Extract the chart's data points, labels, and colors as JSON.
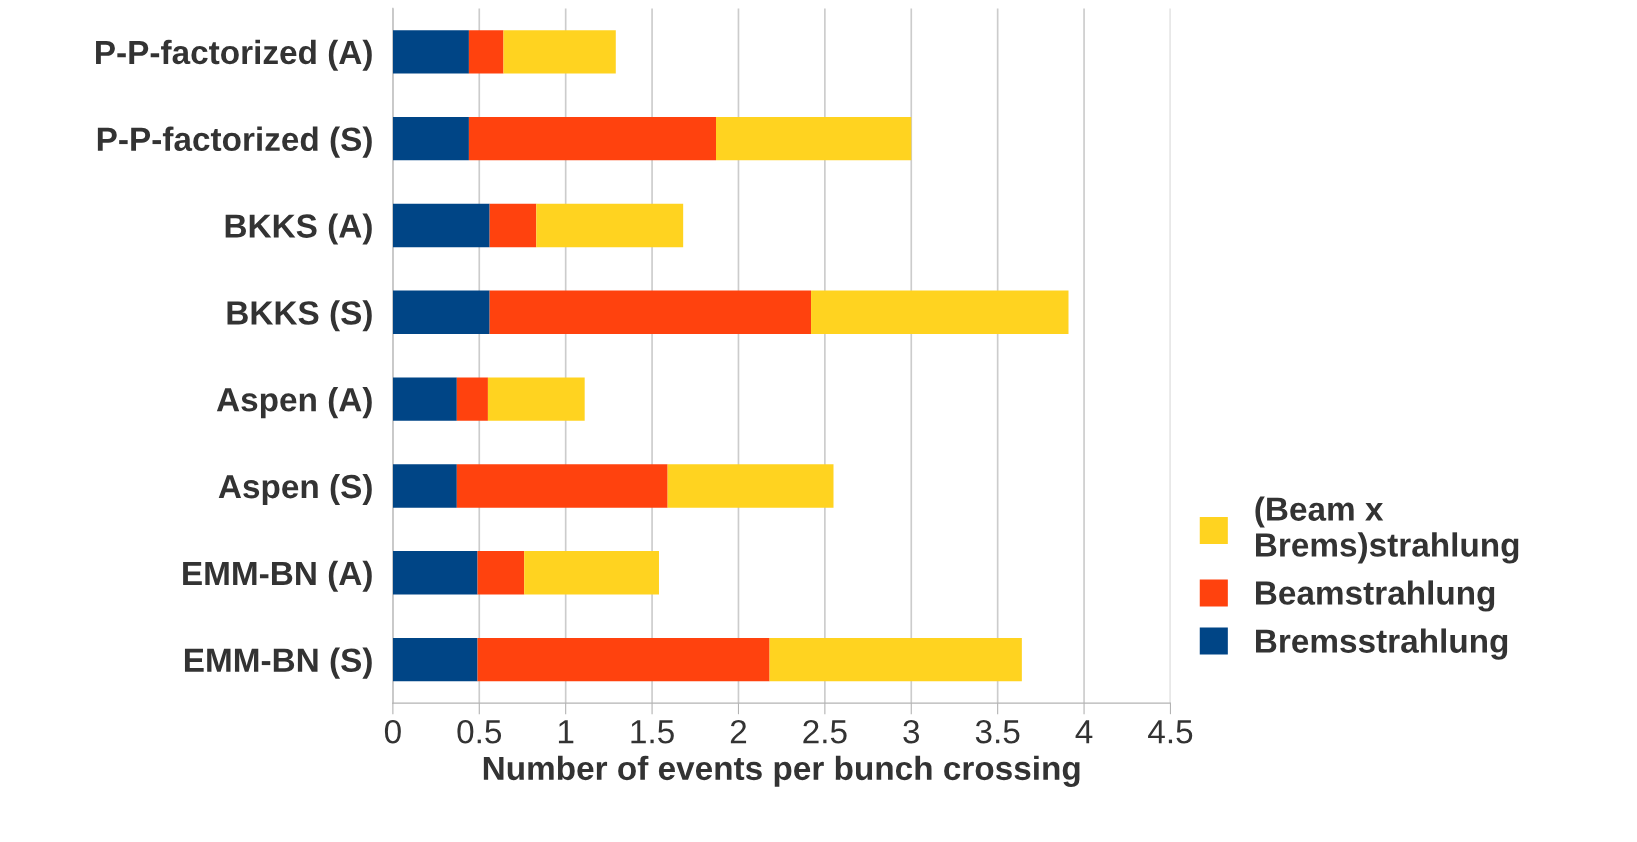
{
  "chart_data": {
    "type": "bar",
    "orientation": "horizontal",
    "stacked": true,
    "categories": [
      "P-P-factorized (A)",
      "P-P-factorized (S)",
      "BKKS (A)",
      "BKKS (S)",
      "Aspen (A)",
      "Aspen (S)",
      "EMM-BN (A)",
      "EMM-BN (S)"
    ],
    "series": [
      {
        "name": "Bremsstrahlung",
        "color": "#004586",
        "values": [
          0.44,
          0.44,
          0.56,
          0.56,
          0.37,
          0.37,
          0.49,
          0.49
        ]
      },
      {
        "name": "Beamstrahlung",
        "color": "#ff420e",
        "values": [
          0.2,
          1.43,
          0.27,
          1.86,
          0.18,
          1.22,
          0.27,
          1.69
        ]
      },
      {
        "name": "(Beam x\nBrems)strahlung",
        "color": "#ffd320",
        "values": [
          0.65,
          1.13,
          0.85,
          1.49,
          0.56,
          0.96,
          0.78,
          1.46
        ]
      }
    ],
    "xlabel": "Number of events per bunch crossing",
    "xlim": [
      0,
      4.5
    ],
    "xticks": [
      0,
      0.5,
      1,
      1.5,
      2,
      2.5,
      3,
      3.5,
      4,
      4.5
    ],
    "grid": "x",
    "legend": "right"
  }
}
